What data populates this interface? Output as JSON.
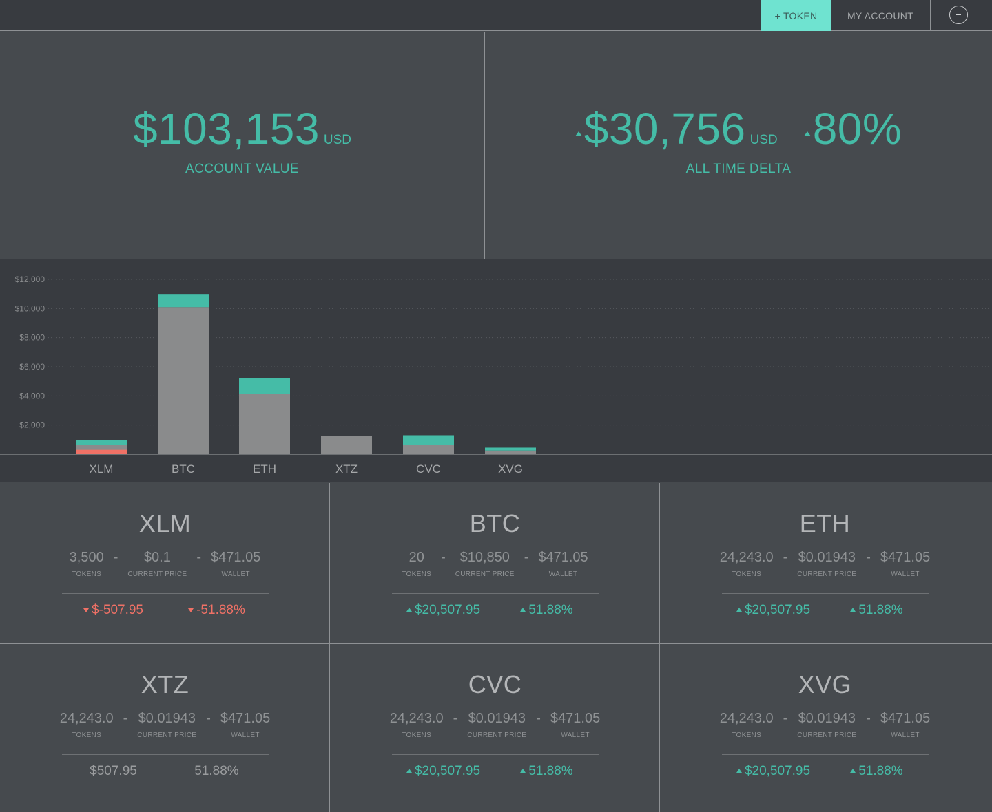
{
  "topbar": {
    "token_label": "+ TOKEN",
    "account_label": "MY ACCOUNT",
    "menu_icon": "minus-circle-icon"
  },
  "summary": {
    "account_value": "$103,153",
    "account_unit": "USD",
    "account_caption": "ACCOUNT VALUE",
    "delta_value": "$30,756",
    "delta_unit": "USD",
    "delta_pct": "80%",
    "delta_caption": "ALL TIME DELTA"
  },
  "colors": {
    "accent": "#45bca7",
    "accent_light": "#6fe3d0",
    "negative": "#f07166",
    "bar_base": "#8a8b8c",
    "background": "#464a4e",
    "panel_dark": "#383b40"
  },
  "chart_data": {
    "type": "bar",
    "stacked": true,
    "categories": [
      "XLM",
      "BTC",
      "ETH",
      "XTZ",
      "CVC",
      "XVG"
    ],
    "series": [
      {
        "values": [
          650,
          10100,
          4150,
          1250,
          650,
          250
        ]
      },
      {
        "values": [
          300,
          900,
          1050,
          0,
          650,
          200
        ]
      },
      {
        "values": [
          -300,
          0,
          0,
          0,
          0,
          0
        ]
      }
    ],
    "ylim": [
      0,
      12000
    ],
    "yticks": [
      "$2,000",
      "$4,000",
      "$6,000",
      "$8,000",
      "$10,000",
      "$12,000"
    ],
    "ytick_values": [
      2000,
      4000,
      6000,
      8000,
      10000,
      12000
    ],
    "grid": true,
    "legend": "none"
  },
  "tokens": [
    {
      "symbol": "XLM",
      "tokens": "3,500",
      "price": "$0.1",
      "wallet": "$471.05",
      "delta_usd": "$-507.95",
      "delta_pct": "-51.88%",
      "trend": "down"
    },
    {
      "symbol": "BTC",
      "tokens": "20",
      "price": "$10,850",
      "wallet": "$471.05",
      "delta_usd": "$20,507.95",
      "delta_pct": "51.88%",
      "trend": "up"
    },
    {
      "symbol": "ETH",
      "tokens": "24,243.0",
      "price": "$0.01943",
      "wallet": "$471.05",
      "delta_usd": "$20,507.95",
      "delta_pct": "51.88%",
      "trend": "up"
    },
    {
      "symbol": "XTZ",
      "tokens": "24,243.0",
      "price": "$0.01943",
      "wallet": "$471.05",
      "delta_usd": "$507.95",
      "delta_pct": "51.88%",
      "trend": "flat"
    },
    {
      "symbol": "CVC",
      "tokens": "24,243.0",
      "price": "$0.01943",
      "wallet": "$471.05",
      "delta_usd": "$20,507.95",
      "delta_pct": "51.88%",
      "trend": "up"
    },
    {
      "symbol": "XVG",
      "tokens": "24,243.0",
      "price": "$0.01943",
      "wallet": "$471.05",
      "delta_usd": "$20,507.95",
      "delta_pct": "51.88%",
      "trend": "up"
    }
  ],
  "labels": {
    "tokens": "TOKENS",
    "current_price": "CURRENT PRICE",
    "wallet": "WALLET",
    "separator": "-"
  }
}
